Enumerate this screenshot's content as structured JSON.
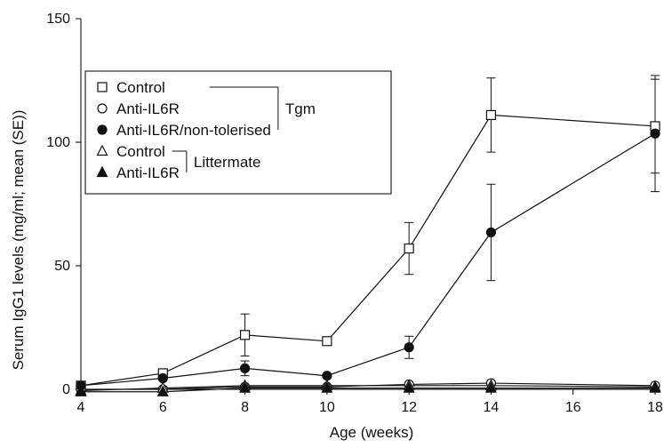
{
  "chart_data": {
    "type": "line",
    "title": "",
    "xlabel": "Age (weeks)",
    "ylabel": "Serum IgG1 levels (mg/ml; mean (SE))",
    "xlim": [
      4,
      18
    ],
    "ylim": [
      0,
      150
    ],
    "xticks": [
      4,
      6,
      8,
      10,
      12,
      14,
      16,
      18
    ],
    "yticks": [
      0,
      50,
      100,
      150
    ],
    "grid": false,
    "legend_placement": "top-left",
    "legend_groups": [
      {
        "label": "Tgm",
        "series": [
          0,
          1,
          2
        ]
      },
      {
        "label": "Littermate",
        "series": [
          3,
          4
        ]
      }
    ],
    "series": [
      {
        "name": "Control",
        "marker": "open-square",
        "x": [
          4,
          6,
          8,
          10,
          12,
          14,
          18
        ],
        "y": [
          1.5,
          6.5,
          22,
          19.5,
          57,
          111,
          106.5
        ],
        "err": [
          0,
          0,
          8.5,
          0,
          10.5,
          15,
          19
        ]
      },
      {
        "name": "Anti-IL6R",
        "marker": "open-circle",
        "x": [
          4,
          6,
          8,
          10,
          12,
          14,
          18
        ],
        "y": [
          0,
          0,
          1,
          1,
          2,
          2.5,
          1.5
        ],
        "err": [
          0,
          0,
          0,
          0,
          0,
          0,
          0
        ]
      },
      {
        "name": "Anti-IL6R/non-tolerised",
        "marker": "filled-circle",
        "x": [
          4,
          6,
          8,
          10,
          12,
          14,
          18
        ],
        "y": [
          1.5,
          4.5,
          8.5,
          5.5,
          17,
          63.5,
          103.5
        ],
        "err": [
          0,
          0,
          3,
          0,
          4.5,
          19.5,
          23.5
        ]
      },
      {
        "name": "Control",
        "marker": "open-triangle",
        "x": [
          4,
          6,
          8,
          10,
          12,
          14,
          18
        ],
        "y": [
          -0.5,
          0.5,
          1.5,
          1.5,
          1.5,
          1.5,
          1
        ],
        "err": [
          0,
          0,
          0,
          0,
          0,
          0,
          0
        ]
      },
      {
        "name": "Anti-IL6R",
        "marker": "filled-triangle",
        "x": [
          4,
          6,
          8,
          10,
          12,
          14,
          18
        ],
        "y": [
          -1,
          -1,
          0.5,
          0.5,
          0.5,
          0.5,
          0.5
        ],
        "err": [
          0,
          0,
          0,
          0,
          0,
          0,
          0
        ]
      }
    ]
  }
}
